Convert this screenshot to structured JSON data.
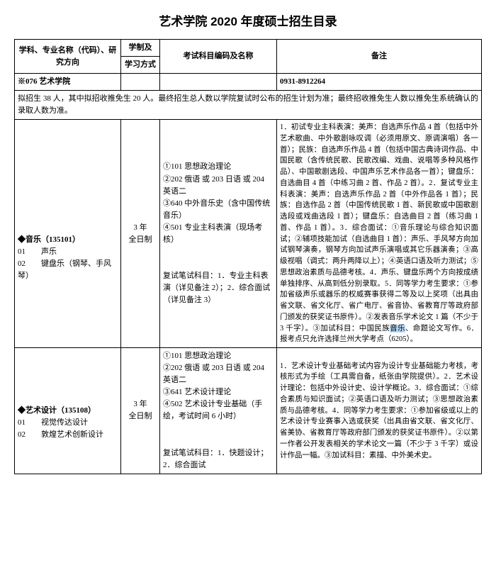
{
  "title": "艺术学院 2020 年度硕士招生目录",
  "header": {
    "col1_a": "学科、专业名称（代码）、研究方向",
    "col2_a": "学制及",
    "col2_b": "学习方式",
    "col3_a": "考试科目编码及名称",
    "col4_a": "备注"
  },
  "deptRow": {
    "dept": "※076 艺术学院",
    "phone": "0931-8912264"
  },
  "quotaRow": "拟招生 38 人，其中拟招收推免生 20 人。最终招生总人数以学院复试时公布的招生计划为准；最终招收推免生人数以推免生系统确认的录取人数为准。",
  "row1": {
    "major_title": "◆音乐（135101）",
    "dir1": "01　　声乐",
    "dir2": "02　　键盘乐（钢琴、手风琴）",
    "duration": "3 年\n全日制",
    "exams": "①101 思想政治理论\n②202 俄语 或 203 日语 或 204 英语二\n③640 中外音乐史（含中国传统音乐）\n④501 专业主科表演（现场考核）\n\n\n复试笔试科目：1．专业主科表演（详见备注 2）；2．综合面试（详见备注 3）",
    "notes_a": "1．初试专业主科表演：美声：自选声乐作品 4 首（包括中外艺术歌曲、中外歌剧咏叹调（必须用原文、原调演唱）各一首）；民族：自选声乐作品 4 首（包括中国古典诗词作品、中国民歌（含传统民歌、民歌改编、戏曲、说唱等多种风格作品）、中国歌剧选段、中国声乐艺术作品各一首）；键盘乐：自选曲目 4 首（中练习曲 2 首、作品 2 首）。2．复试专业主科表演：美声：自选声乐作品 2 首（中外作品各 1 首）；民族：自选作品 2 首（中国传统民歌 1 首、新民歌或中国歌剧选段或戏曲选段 1 首）；键盘乐：自选曲目 2 首（练习曲 1 首、作品 1 首）。3．综合面试：①音乐理论与综合知识面试；②辅项技能加试（自选曲目 1 首）：声乐、手风琴方向加试钢琴演奏，钢琴方向加试声乐演唱或其它乐器演奏；③高级视唱（调式：两升两降以上）；④英语口语及听力测试；⑤思想政治素质与品德考核。4．声乐、键盘乐两个方向按成绩单独排序、从高到低分别录取。5．同等学力考生要求：①参加省级声乐或器乐的权威赛事获得二等及以上奖项（出具由省文联、省文化厅、省广电厅、省音协、省教育厅等政府部门颁发的获奖证书原件）。②发表音乐学术论文 1 篇（不少于 3 千字）。③加试科目：中国民族",
    "notes_sel": "音乐",
    "notes_b": "、命题论文写作。6．报考点只允许选择兰州大学考点（6205）。"
  },
  "row2": {
    "major_title": "◆艺术设计（135108）",
    "dir1": "01　　视觉传达设计",
    "dir2": "02　　敦煌艺术创新设计",
    "duration": "3 年\n全日制",
    "exams": "①101 思想政治理论\n②202 俄语 或 203 日语 或 204 英语二\n③641 艺术设计理论\n④502 艺术设计专业基础（手绘，考试时间 6 小时）\n\n\n复试笔试科目：1．快题设计；2．综合面试",
    "notes": "1．艺术设计专业基础考试内容为设计专业基础能力考核，考核形式为手绘（工具需自备，纸张由学院提供）。2．艺术设计理论：包括中外设计史、设计学概论。3．综合面试：①综合素质与知识面试；②英语口语及听力测试；③思想政治素质与品德考核。4．同等学力考生要求：①参加省级或以上的艺术设计专业赛事入选或获奖（出具由省文联、省文化厅、省美协、省教育厅等政府部门颁发的获奖证书原件）。②以第一作者公开发表相关的学术论文一篇（不少于 3 千字）或设计作品一幅。③加试科目：素描、中外美术史。"
  }
}
